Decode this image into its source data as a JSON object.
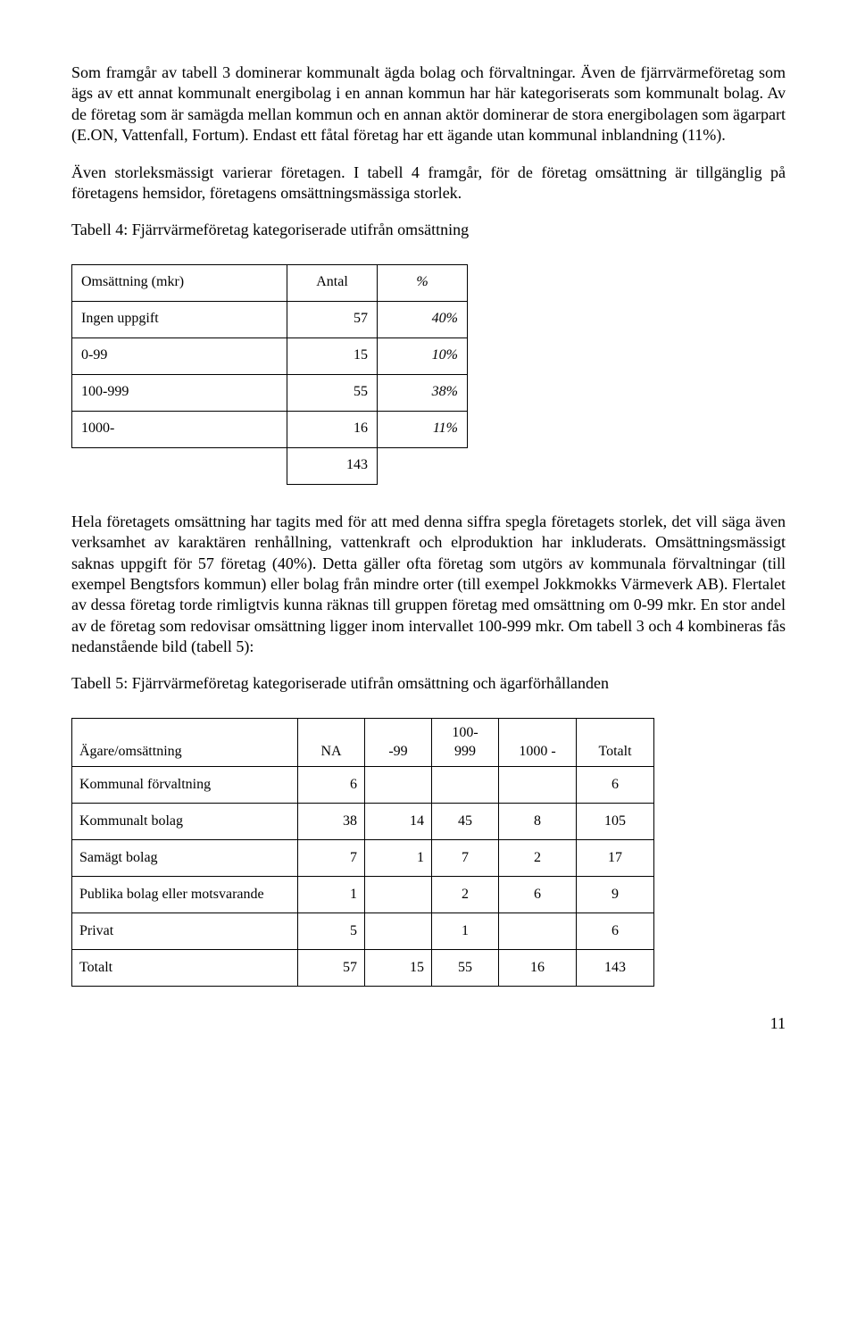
{
  "para1": "Som framgår av tabell 3 dominerar kommunalt ägda bolag och förvaltningar. Även de fjärrvärmeföretag som ägs av ett annat kommunalt energibolag i en annan kommun har här kategoriserats som kommunalt bolag. Av de företag som är samägda mellan kommun och en annan aktör dominerar de stora energibolagen som ägarpart (E.ON, Vattenfall, Fortum). Endast ett fåtal företag har ett ägande utan kommunal inblandning (11%).",
  "para2": "Även storleksmässigt varierar företagen. I tabell 4 framgår, för de företag omsättning är tillgänglig på företagens hemsidor, företagens omsättningsmässiga storlek.",
  "table4": {
    "caption": "Tabell 4: Fjärrvärmeföretag kategoriserade utifrån omsättning",
    "header": {
      "c1": "Omsättning (mkr)",
      "c2": "Antal",
      "c3": "%"
    },
    "rows": [
      {
        "c1": "Ingen uppgift",
        "c2": "57",
        "c3": "40%"
      },
      {
        "c1": "0-99",
        "c2": "15",
        "c3": "10%"
      },
      {
        "c1": "100-999",
        "c2": "55",
        "c3": "38%"
      },
      {
        "c1": "1000-",
        "c2": "16",
        "c3": "11%"
      }
    ],
    "total": "143"
  },
  "para3": "Hela företagets omsättning har tagits med för att med denna siffra spegla företagets storlek, det vill säga även verksamhet av karaktären renhållning, vattenkraft och elproduktion har inkluderats. Omsättningsmässigt saknas uppgift för 57 företag (40%). Detta gäller ofta företag som utgörs av kommunala förvaltningar (till exempel Bengtsfors kommun) eller bolag från mindre orter (till exempel Jokkmokks Värmeverk AB). Flertalet av dessa företag torde rimligtvis kunna räknas till gruppen företag med omsättning om 0-99 mkr. En stor andel av de företag som redovisar omsättning ligger inom intervallet 100-999 mkr. Om tabell 3 och 4 kombineras fås nedanstående bild (tabell 5):",
  "table5": {
    "caption": "Tabell 5: Fjärrvärmeföretag kategoriserade utifrån omsättning och ägarförhållanden",
    "header": {
      "c1": "Ägare/omsättning",
      "c2": "NA",
      "c3": "-99",
      "c4a": "100-",
      "c4b": "999",
      "c5": "1000 -",
      "c6": "Totalt"
    },
    "rows": [
      {
        "c1": "Kommunal förvaltning",
        "c2": "6",
        "c3": "",
        "c4": "",
        "c5": "",
        "c6": "6"
      },
      {
        "c1": "Kommunalt bolag",
        "c2": "38",
        "c3": "14",
        "c4": "45",
        "c5": "8",
        "c6": "105"
      },
      {
        "c1": "Samägt bolag",
        "c2": "7",
        "c3": "1",
        "c4": "7",
        "c5": "2",
        "c6": "17"
      },
      {
        "c1": "Publika bolag eller motsvarande",
        "c2": "1",
        "c3": "",
        "c4": "2",
        "c5": "6",
        "c6": "9"
      },
      {
        "c1": "Privat",
        "c2": "5",
        "c3": "",
        "c4": "1",
        "c5": "",
        "c6": "6"
      },
      {
        "c1": "Totalt",
        "c2": "57",
        "c3": "15",
        "c4": "55",
        "c5": "16",
        "c6": "143"
      }
    ]
  },
  "pagenum": "11"
}
